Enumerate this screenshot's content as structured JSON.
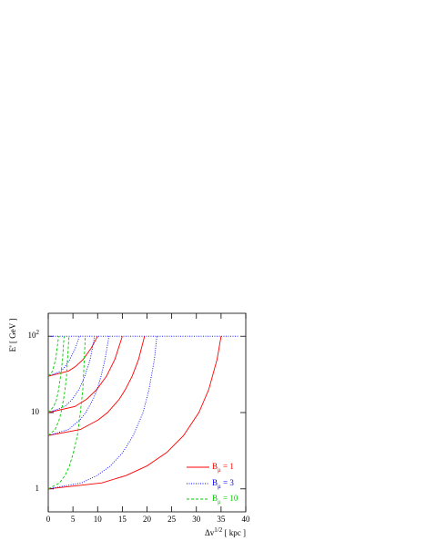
{
  "chart_data": {
    "type": "line",
    "log_y": true,
    "xlabel": {
      "main": "Δv",
      "sup": "1/2",
      "rest": " [ kpc ]"
    },
    "ylabel": "E' [ GeV ]",
    "xlim": [
      0,
      40
    ],
    "ylim": [
      0.5,
      200
    ],
    "xticks": [
      0,
      5,
      10,
      15,
      20,
      25,
      30,
      35,
      40
    ],
    "yticks": [
      1,
      10,
      {
        "value": 100,
        "label": "10",
        "sup": "2"
      }
    ],
    "reference_line": {
      "y": 100,
      "x": [
        0,
        38.5
      ],
      "color": "#0000ff",
      "dash": "1,1.5"
    },
    "legend_position": "lower right",
    "groups": [
      {
        "name": "B",
        "sub": "μ",
        "rest": " = 1",
        "color": "#ff0000",
        "dash": "none",
        "curves": [
          {
            "x": [
              0,
              10.9,
              15.8,
              20.0,
              24.0,
              27.4,
              30.5,
              32.5,
              34.2,
              35
            ],
            "values": [
              1,
              1.2,
              1.5,
              2,
              3,
              5,
              10,
              20,
              50,
              100
            ]
          },
          {
            "x": [
              0,
              6.5,
              10.1,
              12.0,
              14.4,
              15.6,
              17.0,
              18.3,
              19.5
            ],
            "values": [
              5,
              6,
              8,
              10,
              15,
              20,
              30,
              50,
              100
            ]
          },
          {
            "x": [
              0,
              5.4,
              7.8,
              9.8,
              11.8,
              13.5,
              15
            ],
            "values": [
              10,
              12,
              15,
              20,
              30,
              50,
              100
            ]
          },
          {
            "x": [
              0,
              4.1,
              5.5,
              7.1,
              8.7,
              10
            ],
            "values": [
              30,
              35,
              40,
              50,
              70,
              100
            ]
          }
        ]
      },
      {
        "name": "B",
        "sub": "μ",
        "rest": " = 3",
        "color": "#0000ff",
        "dash": "1,1.5",
        "curves": [
          {
            "x": [
              0,
              6.8,
              9.9,
              12.6,
              15.1,
              17.2,
              19.2,
              20.4,
              21.5,
              22
            ],
            "values": [
              1,
              1.2,
              1.5,
              2,
              3,
              5,
              10,
              20,
              50,
              100
            ]
          },
          {
            "x": [
              0,
              4.1,
              6.4,
              7.6,
              9.1,
              9.9,
              10.7,
              11.5,
              12.3
            ],
            "values": [
              5,
              6,
              8,
              10,
              15,
              20,
              30,
              50,
              100
            ]
          },
          {
            "x": [
              0,
              3.4,
              4.9,
              6.2,
              7.4,
              8.5,
              9.4
            ],
            "values": [
              10,
              12,
              15,
              20,
              30,
              50,
              100
            ]
          },
          {
            "x": [
              0,
              2.6,
              3.4,
              4.4,
              5.5,
              6.3
            ],
            "values": [
              30,
              35,
              40,
              50,
              70,
              100
            ]
          }
        ]
      },
      {
        "name": "B",
        "sub": "μ",
        "rest": " = 10",
        "color": "#00cc00",
        "dash": "3,2",
        "curves": [
          {
            "x": [
              0,
              2.3,
              3.4,
              4.3,
              5.1,
              5.9,
              6.5,
              7.0,
              7.3,
              7.5
            ],
            "values": [
              1,
              1.2,
              1.5,
              2,
              3,
              5,
              10,
              20,
              50,
              100
            ]
          },
          {
            "x": [
              0,
              1.4,
              2.2,
              2.6,
              3.1,
              3.4,
              3.7,
              3.9,
              4.2
            ],
            "values": [
              5,
              6,
              8,
              10,
              15,
              20,
              30,
              50,
              100
            ]
          },
          {
            "x": [
              0,
              1.1,
              1.7,
              2.1,
              2.5,
              2.9,
              3.2
            ],
            "values": [
              10,
              12,
              15,
              20,
              30,
              50,
              100
            ]
          },
          {
            "x": [
              0,
              0.9,
              1.1,
              1.5,
              1.8,
              2.1
            ],
            "values": [
              30,
              35,
              40,
              50,
              70,
              100
            ]
          }
        ]
      }
    ]
  }
}
